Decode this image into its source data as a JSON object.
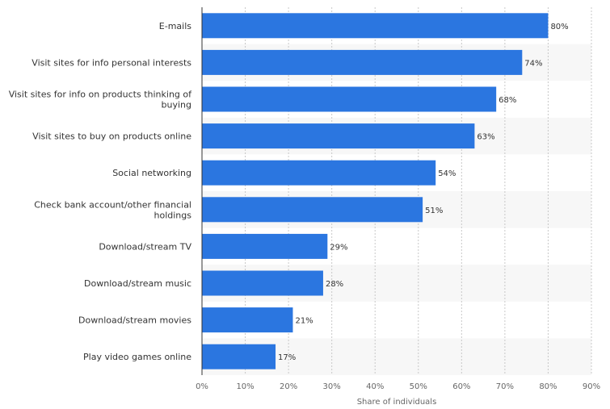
{
  "chart_data": {
    "type": "bar",
    "orientation": "horizontal",
    "categories": [
      "E-mails",
      "Visit sites for info personal interests",
      "Visit sites for info on products thinking of buying",
      "Visit sites to buy on products online",
      "Social networking",
      "Check bank account/other financial holdings",
      "Download/stream TV",
      "Download/stream music",
      "Download/stream movies",
      "Play video games online"
    ],
    "category_lines": [
      [
        "E-mails"
      ],
      [
        "Visit sites for info personal interests"
      ],
      [
        "Visit sites for info on products thinking of",
        "buying"
      ],
      [
        "Visit sites to buy on products online"
      ],
      [
        "Social networking"
      ],
      [
        "Check bank account/other financial",
        "holdings"
      ],
      [
        "Download/stream TV"
      ],
      [
        "Download/stream music"
      ],
      [
        "Download/stream movies"
      ],
      [
        "Play video games online"
      ]
    ],
    "values": [
      80,
      74,
      68,
      63,
      54,
      51,
      29,
      28,
      21,
      17
    ],
    "value_labels": [
      "80%",
      "74%",
      "68%",
      "63%",
      "54%",
      "51%",
      "29%",
      "28%",
      "21%",
      "17%"
    ],
    "xlabel": "Share of individuals",
    "ylabel": "",
    "xlim": [
      0,
      90
    ],
    "ticks": [
      0,
      10,
      20,
      30,
      40,
      50,
      60,
      70,
      80,
      90
    ],
    "tick_labels": [
      "0%",
      "10%",
      "20%",
      "30%",
      "40%",
      "50%",
      "60%",
      "70%",
      "80%",
      "90%"
    ],
    "grid": true,
    "legend": "none",
    "colors": {
      "bar": "#2b76e0",
      "stripe": "#f7f7f7",
      "grid": "#c8c8c8",
      "axis": "#333333"
    }
  }
}
